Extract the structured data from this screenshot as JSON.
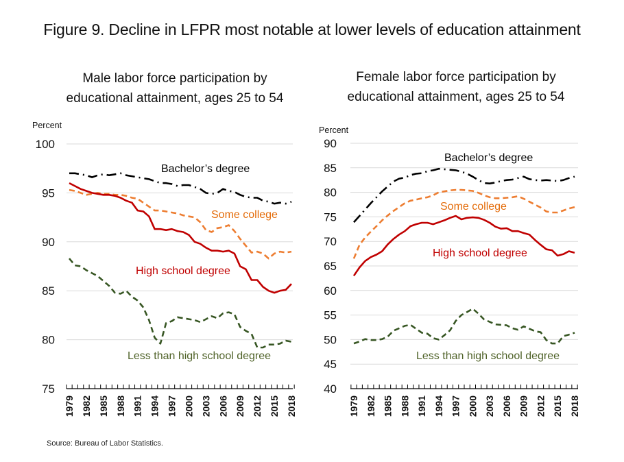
{
  "figure_title": "Figure 9. Decline in LFPR most notable at lower levels of education attainment",
  "source": "Source: Bureau of Labor Statistics.",
  "chart_data": [
    {
      "type": "line",
      "title_line1": "Male labor force participation by",
      "title_line2": "educational attainment, ages 25 to 54",
      "ylabel": "Percent",
      "xlabel": "",
      "ylim": [
        75,
        100
      ],
      "yticks": [
        75,
        80,
        85,
        90,
        95,
        100
      ],
      "grid": true,
      "x": [
        1979,
        1980,
        1981,
        1982,
        1983,
        1984,
        1985,
        1986,
        1987,
        1988,
        1989,
        1990,
        1991,
        1992,
        1993,
        1994,
        1995,
        1996,
        1997,
        1998,
        1999,
        2000,
        2001,
        2002,
        2003,
        2004,
        2005,
        2006,
        2007,
        2008,
        2009,
        2010,
        2011,
        2012,
        2013,
        2014,
        2015,
        2016,
        2017,
        2018
      ],
      "xtick_labels": [
        "1979",
        "1982",
        "1985",
        "1988",
        "1991",
        "1994",
        "1997",
        "2000",
        "2003",
        "2006",
        "2009",
        "2012",
        "2015",
        "2018"
      ],
      "series": [
        {
          "name": "Bachelor's degree",
          "label": "Bachelor’s degree",
          "color": "#000000",
          "style": "dashdot",
          "values": [
            97.0,
            97.0,
            96.9,
            96.8,
            96.6,
            96.8,
            96.9,
            96.8,
            96.9,
            97.0,
            96.8,
            96.7,
            96.6,
            96.5,
            96.4,
            96.2,
            96.0,
            96.0,
            95.9,
            95.7,
            95.8,
            95.8,
            95.6,
            95.4,
            95.0,
            94.9,
            95.0,
            95.4,
            95.2,
            95.1,
            94.8,
            94.6,
            94.5,
            94.5,
            94.2,
            94.1,
            93.9,
            94.0,
            93.9,
            94.1
          ]
        },
        {
          "name": "Some college",
          "label": "Some college",
          "color": "#ED7D31",
          "style": "dashed",
          "values": [
            95.3,
            95.2,
            95.0,
            94.8,
            94.9,
            95.0,
            94.9,
            94.9,
            94.8,
            94.8,
            94.7,
            94.5,
            94.4,
            94.0,
            93.6,
            93.2,
            93.2,
            93.1,
            93.0,
            92.9,
            92.7,
            92.6,
            92.5,
            92.0,
            91.2,
            91.0,
            91.4,
            91.5,
            91.7,
            91.1,
            90.3,
            89.6,
            88.9,
            89.0,
            88.8,
            88.3,
            88.8,
            89.0,
            88.9,
            89.0
          ]
        },
        {
          "name": "High school degree",
          "label": "High school degree",
          "color": "#C00000",
          "style": "solid",
          "values": [
            96.0,
            95.7,
            95.4,
            95.2,
            95.0,
            94.9,
            94.8,
            94.8,
            94.7,
            94.5,
            94.2,
            94.0,
            93.2,
            93.1,
            92.6,
            91.3,
            91.3,
            91.2,
            91.3,
            91.1,
            91.0,
            90.7,
            90.0,
            89.8,
            89.4,
            89.1,
            89.1,
            89.0,
            89.1,
            88.8,
            87.5,
            87.2,
            86.1,
            86.1,
            85.4,
            85.0,
            84.8,
            85.0,
            85.1,
            85.7
          ]
        },
        {
          "name": "Less than high school degree",
          "label": "Less than high school degree",
          "color": "#375623",
          "style": "dashed",
          "values": [
            88.3,
            87.6,
            87.5,
            87.1,
            86.8,
            86.5,
            86.0,
            85.5,
            84.8,
            84.7,
            85.0,
            84.4,
            84.0,
            83.3,
            82.0,
            80.2,
            79.6,
            81.7,
            81.9,
            82.3,
            82.2,
            82.1,
            82.0,
            81.8,
            82.1,
            82.4,
            82.2,
            82.7,
            82.8,
            82.6,
            81.3,
            80.9,
            80.6,
            79.2,
            79.2,
            79.5,
            79.5,
            79.6,
            79.9,
            79.8
          ]
        }
      ]
    },
    {
      "type": "line",
      "title_line1": "Female labor force participation by",
      "title_line2": "educational attainment, ages 25 to 54",
      "ylabel": "Percent",
      "xlabel": "",
      "ylim": [
        40,
        90
      ],
      "yticks": [
        40,
        45,
        50,
        55,
        60,
        65,
        70,
        75,
        80,
        85,
        90
      ],
      "grid": true,
      "x": [
        1979,
        1980,
        1981,
        1982,
        1983,
        1984,
        1985,
        1986,
        1987,
        1988,
        1989,
        1990,
        1991,
        1992,
        1993,
        1994,
        1995,
        1996,
        1997,
        1998,
        1999,
        2000,
        2001,
        2002,
        2003,
        2004,
        2005,
        2006,
        2007,
        2008,
        2009,
        2010,
        2011,
        2012,
        2013,
        2014,
        2015,
        2016,
        2017,
        2018
      ],
      "xtick_labels": [
        "1979",
        "1982",
        "1985",
        "1988",
        "1991",
        "1994",
        "1997",
        "2000",
        "2003",
        "2006",
        "2009",
        "2012",
        "2015",
        "2018"
      ],
      "series": [
        {
          "name": "Bachelor's degree",
          "label": "Bachelor’s degree",
          "color": "#000000",
          "style": "dashdot",
          "values": [
            73.9,
            75.2,
            76.5,
            77.8,
            79.0,
            80.2,
            81.2,
            82.2,
            82.8,
            83.0,
            83.5,
            83.8,
            83.9,
            84.3,
            84.5,
            84.8,
            84.7,
            84.6,
            84.5,
            84.2,
            83.8,
            83.2,
            82.5,
            81.9,
            81.8,
            82.0,
            82.3,
            82.5,
            82.6,
            82.9,
            83.2,
            82.7,
            82.5,
            82.4,
            82.5,
            82.4,
            82.3,
            82.5,
            82.9,
            83.2
          ]
        },
        {
          "name": "Some college",
          "label": "Some college",
          "color": "#ED7D31",
          "style": "dashed",
          "values": [
            66.5,
            69.3,
            70.8,
            72.0,
            73.1,
            74.3,
            75.3,
            76.2,
            77.0,
            77.8,
            78.3,
            78.5,
            78.8,
            79.0,
            79.4,
            80.0,
            80.2,
            80.4,
            80.5,
            80.5,
            80.4,
            80.3,
            79.9,
            79.4,
            79.0,
            78.8,
            78.8,
            78.9,
            79.0,
            79.2,
            78.7,
            78.1,
            77.5,
            76.9,
            76.1,
            75.9,
            75.9,
            76.3,
            76.7,
            77.0
          ]
        },
        {
          "name": "High school degree",
          "label": "High school degree",
          "color": "#C00000",
          "style": "solid",
          "values": [
            63.0,
            64.7,
            66.0,
            66.8,
            67.3,
            68.0,
            69.4,
            70.5,
            71.4,
            72.1,
            73.1,
            73.5,
            73.8,
            73.8,
            73.5,
            73.9,
            74.3,
            74.8,
            75.2,
            74.5,
            74.8,
            74.9,
            74.8,
            74.4,
            73.8,
            73.0,
            72.6,
            72.7,
            72.1,
            72.1,
            71.7,
            71.4,
            70.3,
            69.3,
            68.4,
            68.2,
            67.1,
            67.4,
            68.0,
            67.7
          ]
        },
        {
          "name": "Less than high school degree",
          "label": "Less than high school degree",
          "color": "#375623",
          "style": "dashed",
          "values": [
            49.2,
            49.6,
            50.1,
            49.9,
            49.9,
            50.1,
            50.6,
            51.8,
            52.3,
            52.8,
            53.0,
            52.2,
            51.4,
            51.2,
            50.3,
            50.0,
            50.9,
            51.9,
            53.8,
            55.0,
            55.6,
            56.3,
            55.3,
            54.1,
            53.6,
            53.1,
            53.0,
            52.9,
            52.3,
            52.0,
            52.7,
            52.2,
            51.7,
            51.5,
            49.9,
            49.2,
            49.2,
            50.7,
            51.0,
            51.4
          ]
        }
      ]
    }
  ]
}
